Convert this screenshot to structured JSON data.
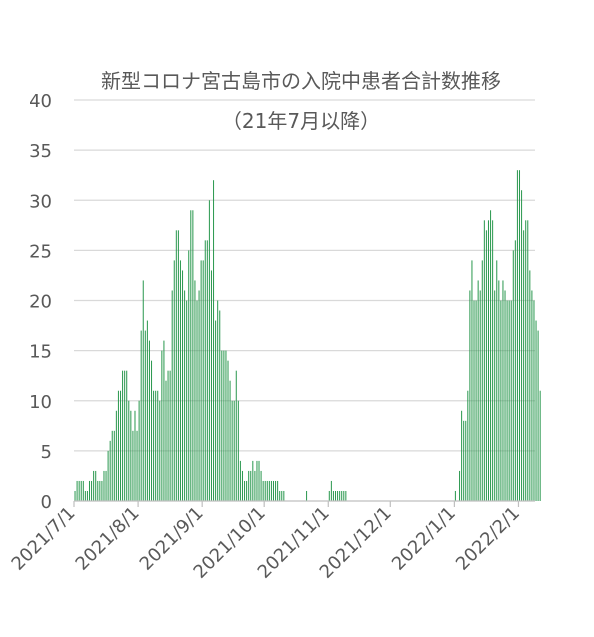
{
  "chart_data": {
    "type": "bar",
    "title": "新型コロナ宮古島市の入院中患者合計数推移",
    "subtitle": "（21年7月以降）",
    "xlabel": "",
    "ylabel": "",
    "ylim": [
      0,
      40
    ],
    "y_ticks": [
      "0",
      "5",
      "10",
      "15",
      "20",
      "25",
      "30",
      "35",
      "40"
    ],
    "x_ticks": [
      "2021/7/1",
      "2021/8/1",
      "2021/9/1",
      "2021/10/1",
      "2021/11/1",
      "2021/12/1",
      "2022/1/1",
      "2022/2/1"
    ],
    "grid": true,
    "bar_color": "#2e9a52",
    "series": [
      {
        "x_start": "2021-07-01",
        "x_end": "2022-02-08",
        "values": [
          1,
          2,
          2,
          2,
          2,
          1,
          1,
          2,
          2,
          3,
          3,
          2,
          2,
          2,
          3,
          3,
          5,
          6,
          7,
          7,
          9,
          11,
          11,
          13,
          13,
          13,
          10,
          9,
          7,
          9,
          7,
          10,
          17,
          22,
          17,
          18,
          16,
          14,
          11,
          11,
          11,
          10,
          15,
          16,
          12,
          13,
          13,
          21,
          24,
          27,
          27,
          24,
          23,
          21,
          20,
          25,
          29,
          29,
          22,
          20,
          21,
          24,
          24,
          26,
          26,
          30,
          23,
          32,
          18,
          20,
          19,
          15,
          15,
          15,
          14,
          12,
          10,
          10,
          13,
          10,
          4,
          3,
          2,
          2,
          3,
          3,
          4,
          3,
          4,
          4,
          3,
          2,
          2,
          2,
          2,
          2,
          2,
          2,
          2,
          1,
          1,
          1,
          0,
          0,
          0,
          0,
          0,
          0,
          0,
          0,
          0,
          0,
          1,
          0,
          0,
          0,
          0,
          0,
          0,
          0,
          0,
          0,
          0,
          1,
          2,
          1,
          1,
          1,
          1,
          1,
          1,
          1,
          0,
          0,
          0,
          0,
          0,
          0,
          0,
          0,
          0,
          0,
          0,
          0,
          0,
          0,
          0,
          0,
          0,
          0,
          0,
          0,
          0,
          0,
          0,
          0,
          0,
          0,
          0,
          0,
          0,
          0,
          0,
          0,
          0,
          0,
          0,
          0,
          0,
          0,
          0,
          0,
          0,
          0,
          0,
          0,
          0,
          0,
          0,
          0,
          0,
          0,
          0,
          0,
          1,
          0,
          3,
          9,
          8,
          8,
          11,
          21,
          24,
          20,
          20,
          22,
          21,
          24,
          28,
          27,
          28,
          29,
          28,
          21,
          24,
          22,
          20,
          22,
          21,
          20,
          20,
          20,
          25,
          26,
          33,
          33,
          31,
          27,
          28,
          28,
          23,
          21,
          20,
          18,
          17,
          11
        ]
      }
    ]
  }
}
